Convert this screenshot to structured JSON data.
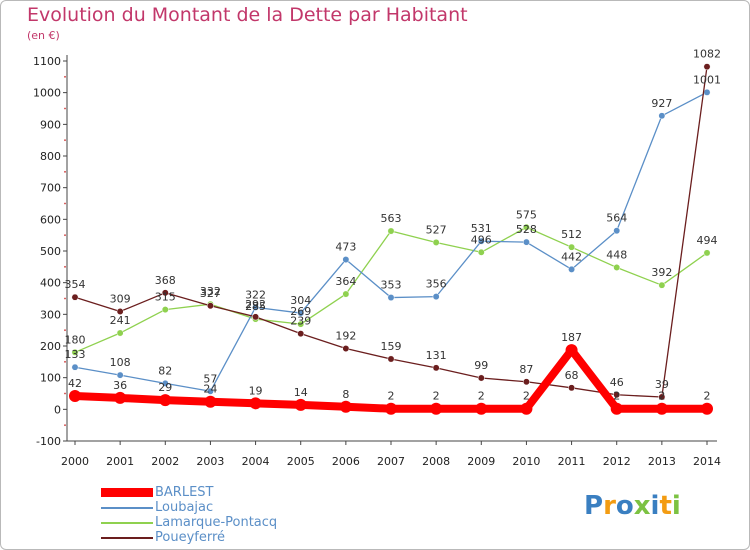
{
  "chart_data": {
    "type": "line",
    "title": "Evolution du Montant de la Dette par Habitant",
    "subtitle": "(en €)",
    "x": [
      "2000",
      "2001",
      "2002",
      "2003",
      "2004",
      "2005",
      "2006",
      "2007",
      "2008",
      "2009",
      "2010",
      "2011",
      "2012",
      "2013",
      "2014"
    ],
    "ylim": [
      -100,
      1100
    ],
    "yticks": [
      -100,
      0,
      100,
      200,
      300,
      400,
      500,
      600,
      700,
      800,
      900,
      1000,
      1100
    ],
    "grid": false,
    "legend_position": "bottom-left",
    "series": [
      {
        "name": "BARLEST",
        "color": "#ff0000",
        "values": [
          42,
          36,
          29,
          24,
          19,
          14,
          8,
          2,
          2,
          2,
          2,
          187,
          2,
          2,
          2
        ]
      },
      {
        "name": "Loubajac",
        "color": "#5b8fc7",
        "values": [
          133,
          108,
          82,
          57,
          322,
          304,
          473,
          353,
          356,
          531,
          528,
          442,
          564,
          927,
          1001
        ]
      },
      {
        "name": "Lamarque-Pontacq",
        "color": "#8fd14f",
        "values": [
          180,
          241,
          315,
          332,
          285,
          269,
          364,
          563,
          527,
          496,
          575,
          512,
          448,
          392,
          494
        ]
      },
      {
        "name": "Poueyferré",
        "color": "#6b1e1e",
        "values": [
          354,
          309,
          368,
          327,
          292,
          239,
          192,
          159,
          131,
          99,
          87,
          68,
          46,
          39,
          1082
        ]
      }
    ]
  },
  "logo": {
    "letters": [
      "P",
      "r",
      "o",
      "x",
      "i",
      "t",
      "i"
    ],
    "colors": [
      "#3a7fc1",
      "#f39c12",
      "#3a7fc1",
      "#7cc242",
      "#3a7fc1",
      "#f39c12",
      "#7cc242"
    ]
  }
}
